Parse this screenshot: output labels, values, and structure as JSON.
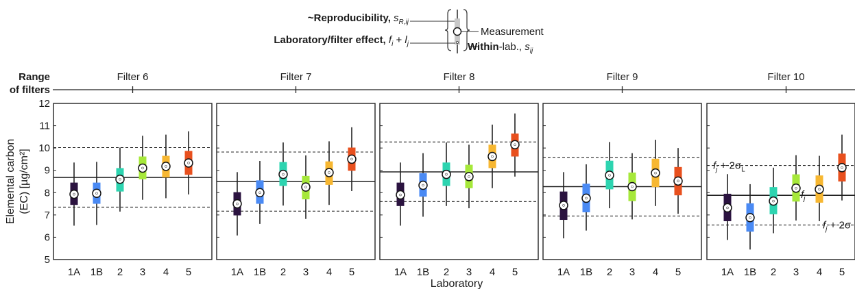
{
  "legend": {
    "reproducibility_label": "~Reproducibility,",
    "reproducibility_symbol": "s",
    "reproducibility_sub": "R,ij",
    "effect_label": "Laboratory/filter effect,",
    "effect_symbol": "f",
    "effect_sub": "i",
    "effect_plus": " + ",
    "effect_symbol2": "l",
    "effect_sub2": "j",
    "measurement_label": "Measurement",
    "within_bold": "Within",
    "within_rest": "-lab.,",
    "within_symbol": "s",
    "within_sub": "ij"
  },
  "range_label_line1": "Range",
  "range_label_line2": "of filters",
  "chart_data": {
    "type": "boxplot",
    "xlabel": "Laboratory",
    "ylabel_line1": "Elemental carbon",
    "ylabel_line2": "(EC) [µg/cm²]",
    "ylim": [
      5,
      12
    ],
    "yticks": [
      5,
      6,
      7,
      8,
      9,
      10,
      11,
      12
    ],
    "categories": [
      "1A",
      "1B",
      "2",
      "3",
      "4",
      "5"
    ],
    "colors": [
      "#2b1340",
      "#4a8af4",
      "#2dd4b0",
      "#a6e83a",
      "#f7b731",
      "#e8501e"
    ],
    "annotations": {
      "upper_prefix": "f",
      "upper_sub": "j",
      "upper_rest": " + 2σ",
      "upper_rest_sub": "L",
      "mean_prefix": "f",
      "mean_sub": "j",
      "lower_prefix": "f",
      "lower_sub": "j",
      "lower_rest": " + 2σ"
    },
    "panels": [
      {
        "title": "Filter 6",
        "mean": 8.68,
        "upper": 10.02,
        "lower": 7.35,
        "labs": [
          {
            "value": 7.93,
            "box": [
              7.45,
              8.45
            ],
            "whisker": [
              6.52,
              9.35
            ]
          },
          {
            "value": 7.97,
            "box": [
              7.5,
              8.45
            ],
            "whisker": [
              6.55,
              9.38
            ]
          },
          {
            "value": 8.6,
            "box": [
              8.05,
              9.1
            ],
            "whisker": [
              7.15,
              10.02
            ]
          },
          {
            "value": 9.1,
            "box": [
              8.6,
              9.62
            ],
            "whisker": [
              7.68,
              10.55
            ]
          },
          {
            "value": 9.18,
            "box": [
              8.68,
              9.65
            ],
            "whisker": [
              7.75,
              10.6
            ]
          },
          {
            "value": 9.33,
            "box": [
              8.8,
              9.87
            ],
            "whisker": [
              7.92,
              10.75
            ]
          }
        ]
      },
      {
        "title": "Filter 7",
        "mean": 8.5,
        "upper": 9.82,
        "lower": 7.17,
        "labs": [
          {
            "value": 7.5,
            "box": [
              6.98,
              8.02
            ],
            "whisker": [
              6.08,
              8.92
            ]
          },
          {
            "value": 8.0,
            "box": [
              7.5,
              8.55
            ],
            "whisker": [
              6.6,
              9.42
            ]
          },
          {
            "value": 8.82,
            "box": [
              8.3,
              9.37
            ],
            "whisker": [
              7.42,
              10.25
            ]
          },
          {
            "value": 8.25,
            "box": [
              7.7,
              8.75
            ],
            "whisker": [
              6.82,
              9.67
            ]
          },
          {
            "value": 8.9,
            "box": [
              8.35,
              9.4
            ],
            "whisker": [
              7.45,
              10.3
            ]
          },
          {
            "value": 9.5,
            "box": [
              8.98,
              10.02
            ],
            "whisker": [
              8.07,
              10.93
            ]
          }
        ]
      },
      {
        "title": "Filter 8",
        "mean": 8.93,
        "upper": 10.27,
        "lower": 7.6,
        "labs": [
          {
            "value": 7.9,
            "box": [
              7.4,
              8.45
            ],
            "whisker": [
              6.52,
              9.35
            ]
          },
          {
            "value": 8.33,
            "box": [
              7.82,
              8.87
            ],
            "whisker": [
              6.92,
              9.77
            ]
          },
          {
            "value": 8.82,
            "box": [
              8.3,
              9.35
            ],
            "whisker": [
              7.4,
              10.25
            ]
          },
          {
            "value": 8.72,
            "box": [
              8.2,
              9.25
            ],
            "whisker": [
              7.3,
              10.15
            ]
          },
          {
            "value": 9.62,
            "box": [
              9.1,
              10.15
            ],
            "whisker": [
              8.2,
              11.05
            ]
          },
          {
            "value": 10.15,
            "box": [
              9.62,
              10.65
            ],
            "whisker": [
              8.72,
              11.55
            ]
          }
        ]
      },
      {
        "title": "Filter 9",
        "mean": 8.27,
        "upper": 9.58,
        "lower": 6.95,
        "labs": [
          {
            "value": 7.43,
            "box": [
              6.78,
              8.05
            ],
            "whisker": [
              5.95,
              8.92
            ]
          },
          {
            "value": 7.75,
            "box": [
              7.12,
              8.4
            ],
            "whisker": [
              6.3,
              9.27
            ]
          },
          {
            "value": 8.78,
            "box": [
              8.15,
              9.43
            ],
            "whisker": [
              7.3,
              10.27
            ]
          },
          {
            "value": 8.27,
            "box": [
              7.62,
              8.9
            ],
            "whisker": [
              6.8,
              9.77
            ]
          },
          {
            "value": 8.88,
            "box": [
              8.25,
              9.52
            ],
            "whisker": [
              7.4,
              10.37
            ]
          },
          {
            "value": 8.52,
            "box": [
              7.88,
              9.15
            ],
            "whisker": [
              7.05,
              10.0
            ]
          }
        ]
      },
      {
        "title": "Filter 10",
        "mean": 7.88,
        "upper": 9.22,
        "lower": 6.55,
        "labs": [
          {
            "value": 7.32,
            "box": [
              6.72,
              7.95
            ],
            "whisker": [
              5.88,
              8.83
            ]
          },
          {
            "value": 6.88,
            "box": [
              6.25,
              7.52
            ],
            "whisker": [
              5.45,
              8.38
            ]
          },
          {
            "value": 7.62,
            "box": [
              7.03,
              8.25
            ],
            "whisker": [
              6.18,
              9.12
            ]
          },
          {
            "value": 8.2,
            "box": [
              7.6,
              8.82
            ],
            "whisker": [
              6.75,
              9.68
            ]
          },
          {
            "value": 8.15,
            "box": [
              7.55,
              8.77
            ],
            "whisker": [
              6.72,
              9.65
            ]
          },
          {
            "value": 9.12,
            "box": [
              8.5,
              9.75
            ],
            "whisker": [
              7.65,
              10.6
            ]
          }
        ]
      }
    ]
  }
}
